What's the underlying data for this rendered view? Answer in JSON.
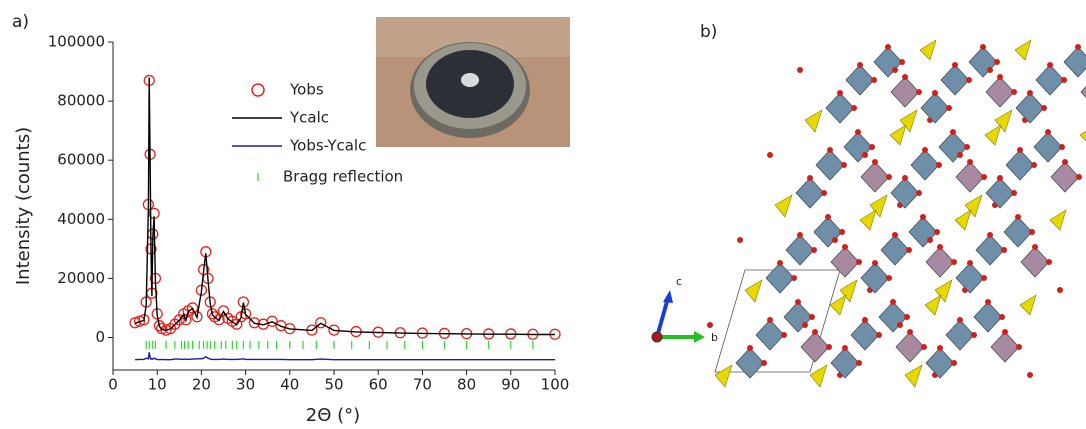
{
  "chart_data": {
    "type": "line",
    "panel_label": "a)",
    "x_label": "2Θ (°)",
    "y_label": "Intensity (counts)",
    "xlim": [
      0,
      100
    ],
    "xticks": [
      0,
      10,
      20,
      30,
      40,
      50,
      60,
      70,
      80,
      90,
      100
    ],
    "ylim": [
      -11000,
      100000
    ],
    "yticks": [
      0,
      20000,
      40000,
      60000,
      80000,
      100000
    ],
    "x": [
      5,
      6,
      7,
      7.5,
      8,
      8.2,
      8.4,
      8.6,
      8.8,
      9,
      9.3,
      9.6,
      10,
      10.5,
      11,
      12,
      13,
      14,
      15,
      16,
      16.5,
      17,
      18,
      19,
      20,
      20.5,
      21,
      21.5,
      22,
      22.5,
      23,
      24,
      25,
      26,
      27,
      28,
      29,
      29.5,
      30,
      32,
      34,
      36,
      38,
      40,
      45,
      47,
      50,
      55,
      60,
      65,
      70,
      75,
      80,
      85,
      90,
      95,
      100
    ],
    "series": [
      {
        "name": "Yobs",
        "color": "#e8231b",
        "marker": "circle",
        "values": [
          5000,
          5500,
          6000,
          12000,
          45000,
          87000,
          62000,
          30000,
          15000,
          35000,
          42000,
          20000,
          8000,
          4000,
          3000,
          2500,
          3000,
          4500,
          6000,
          8000,
          6000,
          9000,
          10000,
          7000,
          16000,
          23000,
          29000,
          20000,
          12000,
          8000,
          7000,
          6000,
          9000,
          6500,
          5500,
          4500,
          7000,
          12000,
          8000,
          5000,
          4500,
          5500,
          4000,
          3000,
          2500,
          5000,
          2500,
          2000,
          1800,
          1600,
          1500,
          1400,
          1300,
          1200,
          1200,
          1100,
          1100
        ]
      },
      {
        "name": "Ycalc",
        "color": "#000000",
        "marker": "line",
        "values": [
          4800,
          5300,
          5800,
          11000,
          44000,
          88000,
          61000,
          29000,
          14000,
          34000,
          41000,
          19000,
          7500,
          3800,
          2800,
          2400,
          2900,
          4300,
          5800,
          7800,
          5800,
          8800,
          9800,
          6800,
          15500,
          22500,
          28500,
          19500,
          11500,
          7800,
          6800,
          5800,
          8800,
          6300,
          5300,
          4300,
          6800,
          11800,
          7800,
          4800,
          4300,
          5300,
          3800,
          2900,
          2400,
          4800,
          2400,
          1900,
          1700,
          1500,
          1400,
          1300,
          1200,
          1100,
          1100,
          1000,
          1000
        ]
      },
      {
        "name": "Yobs-Ycalc",
        "color": "#1a1aa8",
        "marker": "line",
        "values": [
          -7500,
          -7400,
          -7400,
          -7000,
          -7200,
          -5000,
          -6800,
          -7300,
          -7200,
          -7300,
          -7000,
          -7200,
          -7400,
          -7500,
          -7400,
          -7500,
          -7500,
          -7300,
          -7300,
          -7400,
          -7300,
          -7400,
          -7300,
          -7200,
          -7200,
          -7000,
          -6500,
          -7000,
          -7300,
          -7400,
          -7400,
          -7400,
          -7300,
          -7400,
          -7400,
          -7400,
          -7300,
          -7200,
          -7400,
          -7400,
          -7400,
          -7400,
          -7400,
          -7500,
          -7500,
          -7300,
          -7500,
          -7500,
          -7500,
          -7500,
          -7500,
          -7500,
          -7500,
          -7500,
          -7500,
          -7500,
          -7500
        ]
      }
    ],
    "bragg": {
      "name": "Bragg reflection",
      "color": "#22dd22",
      "y": -2500,
      "x": [
        7.5,
        8.2,
        9,
        9.6,
        12,
        14,
        15.5,
        16.2,
        17,
        18,
        19.5,
        20.5,
        21.3,
        22,
        23,
        24.5,
        25.5,
        27,
        28,
        29.5,
        31,
        33,
        35,
        37,
        40,
        43,
        46,
        50,
        54,
        58,
        62,
        66,
        70,
        75,
        80,
        85,
        90,
        95
      ]
    }
  },
  "structure": {
    "panel_label": "b)",
    "axis_labels": [
      "c",
      "b"
    ]
  }
}
